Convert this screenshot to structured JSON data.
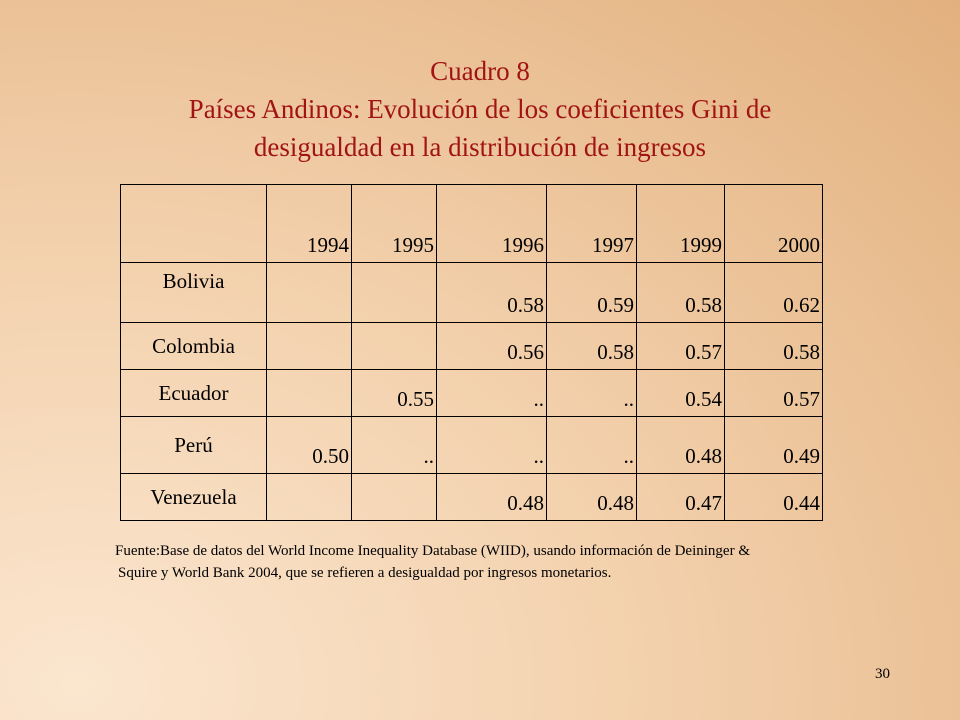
{
  "title": {
    "line1": "Cuadro 8",
    "line2": "Países Andinos: Evolución de los coeficientes Gini de",
    "line3": "desigualdad en la distribución de ingresos"
  },
  "table": {
    "corner": "",
    "columns": [
      "1994",
      "1995",
      "1996",
      "1997",
      "1999",
      "2000"
    ],
    "rows": [
      {
        "country": "Bolivia",
        "values": [
          "",
          "",
          "0.58",
          "0.59",
          "0.58",
          "0.62"
        ]
      },
      {
        "country": "Colombia",
        "values": [
          "",
          "",
          "0.56",
          "0.58",
          "0.57",
          "0.58"
        ]
      },
      {
        "country": "Ecuador",
        "values": [
          "",
          "0.55",
          "..",
          "..",
          "0.54",
          "0.57"
        ]
      },
      {
        "country": "Perú",
        "values": [
          "0.50",
          "..",
          "..",
          "..",
          "0.48",
          "0.49"
        ]
      },
      {
        "country": "Venezuela",
        "values": [
          "",
          "",
          "0.48",
          "0.48",
          "0.47",
          "0.44"
        ]
      }
    ]
  },
  "source": {
    "line1": "Fuente:Base de datos del World Income Inequality Database (WIID), usando información  de Deininger &",
    "line2": "Squire y World Bank 2004, que se refieren a desigualdad por ingresos monetarios."
  },
  "page_number": "30"
}
